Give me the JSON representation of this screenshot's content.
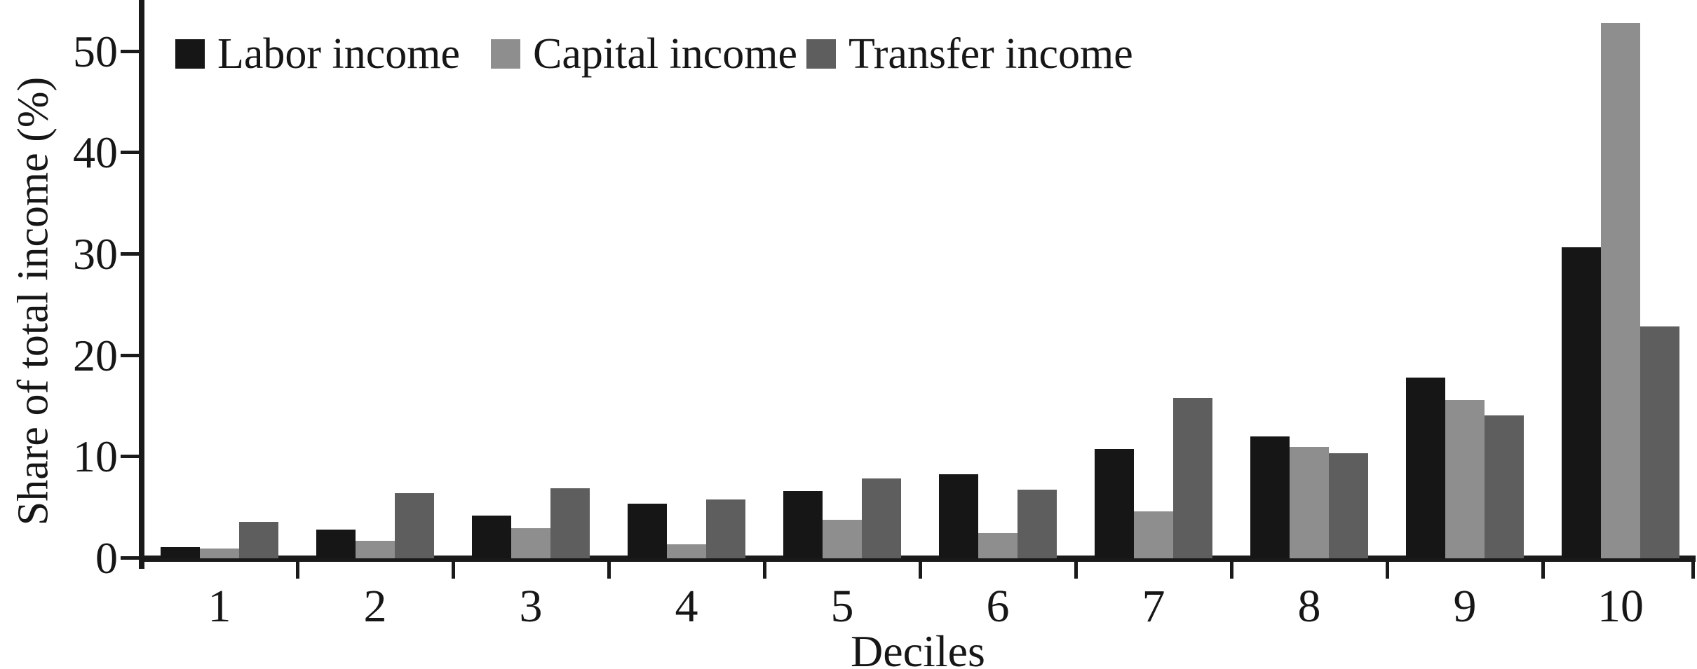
{
  "chart_data": {
    "type": "bar",
    "title": "",
    "xlabel": "Deciles",
    "ylabel": "Share of total income (%)",
    "categories": [
      "1",
      "2",
      "3",
      "4",
      "5",
      "6",
      "7",
      "8",
      "9",
      "10"
    ],
    "series": [
      {
        "name": "Labor income",
        "color": "#161616",
        "values": [
          1.1,
          2.8,
          4.2,
          5.4,
          6.6,
          8.3,
          10.8,
          12.0,
          17.8,
          30.7
        ]
      },
      {
        "name": "Capital income",
        "color": "#8e8e8e",
        "values": [
          1.0,
          1.7,
          3.0,
          1.4,
          3.8,
          2.5,
          4.6,
          11.0,
          15.6,
          52.8
        ]
      },
      {
        "name": "Transfer income",
        "color": "#5e5e5e",
        "values": [
          3.6,
          6.4,
          6.9,
          5.8,
          7.9,
          6.8,
          15.8,
          10.4,
          14.1,
          22.9
        ]
      }
    ],
    "ylim": [
      0,
      55
    ],
    "yticks": [
      0,
      10,
      20,
      30,
      40,
      50
    ],
    "grid": false,
    "legend_position": "top-left-inside"
  }
}
